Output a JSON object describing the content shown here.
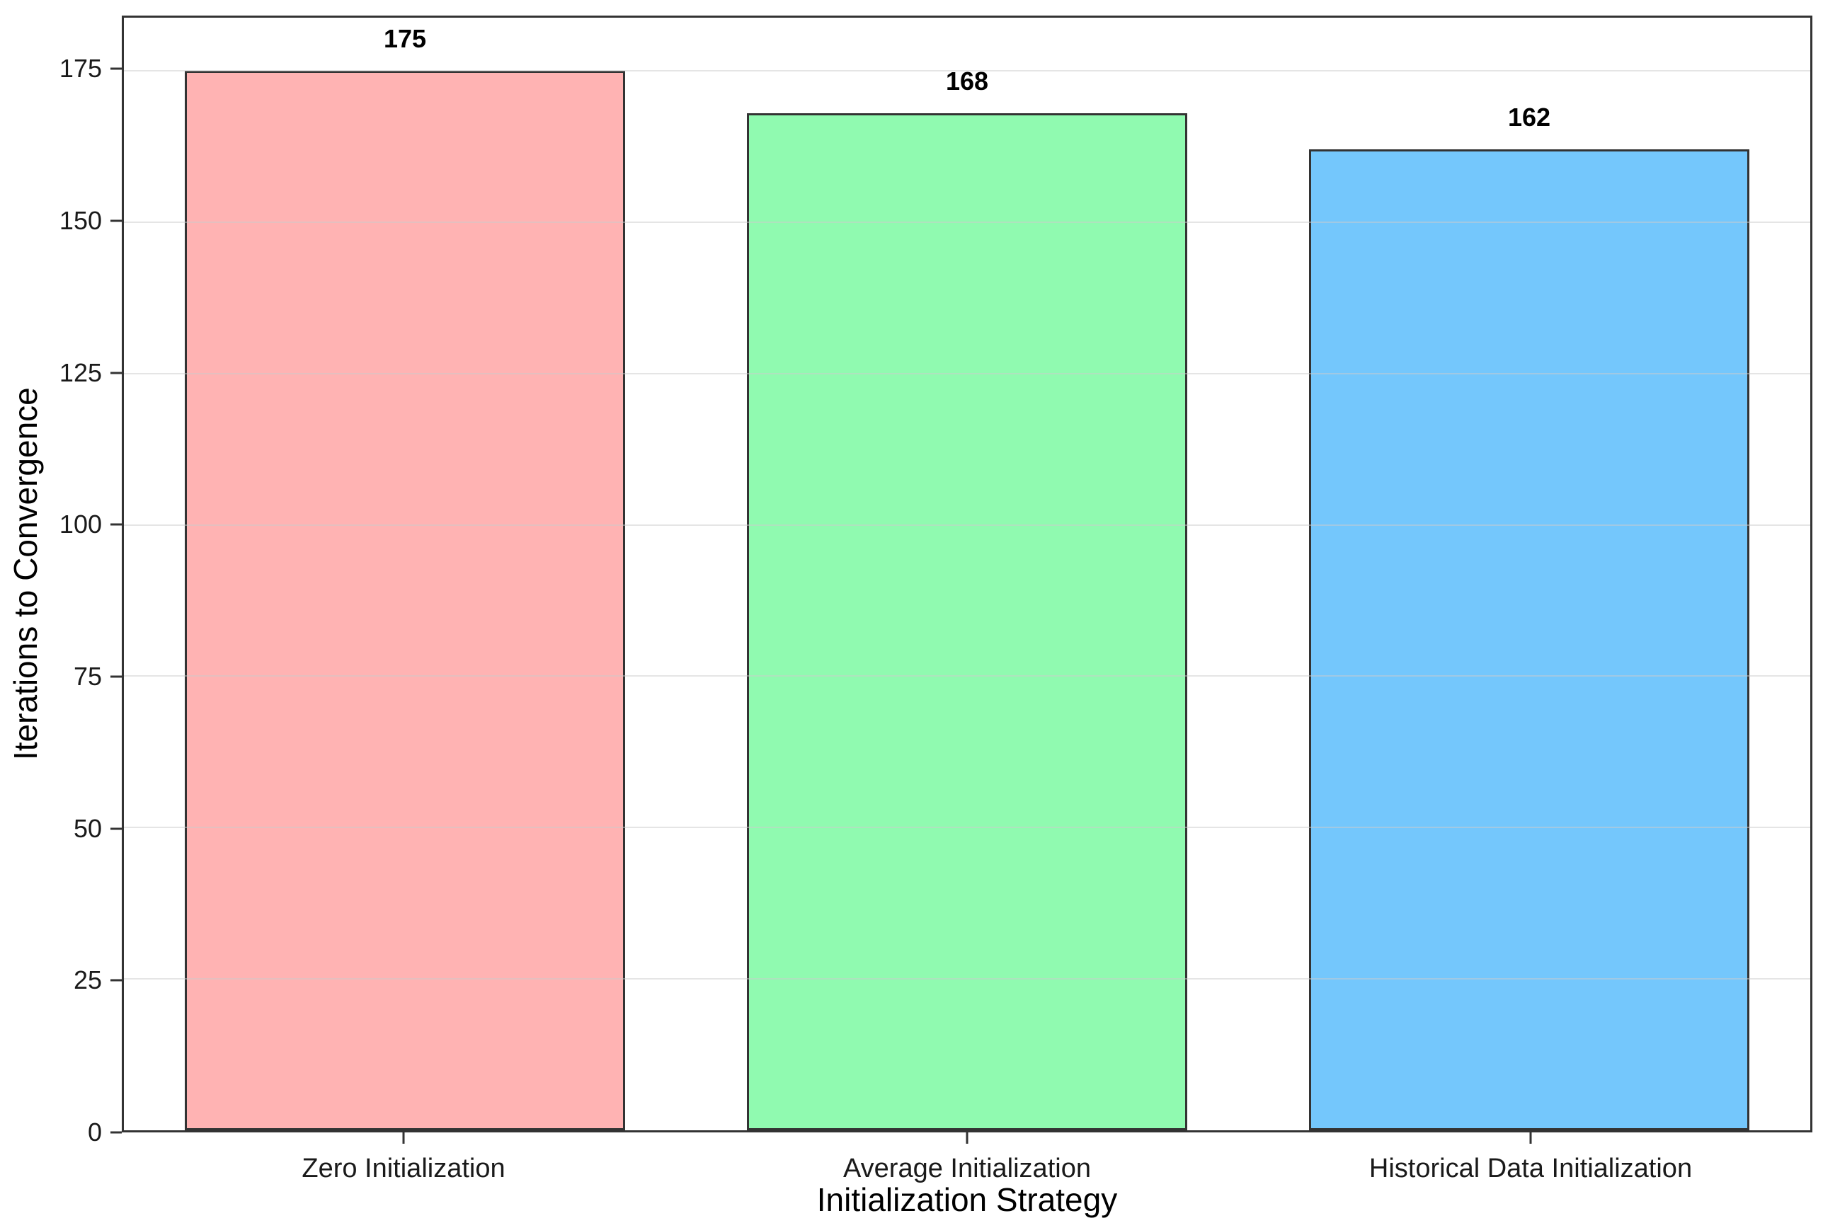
{
  "chart_data": {
    "type": "bar",
    "title": "",
    "xlabel": "Initialization Strategy",
    "ylabel": "Iterations to Convergence",
    "categories": [
      "Zero Initialization",
      "Average Initialization",
      "Historical Data Initialization"
    ],
    "values": [
      175,
      168,
      162
    ],
    "value_labels": [
      "175",
      "168",
      "162"
    ],
    "bar_colors": [
      "#ffb3b3",
      "#90fab0",
      "#74c7fc"
    ],
    "bar_edge_color": "#333333",
    "ylim": [
      0,
      183.75
    ],
    "yticks": [
      0,
      25,
      50,
      75,
      100,
      125,
      150,
      175
    ],
    "grid": "horizontal",
    "gridline_color": "rgba(203,203,203,0.5)",
    "frame_color": "#333333",
    "background_color": "#ffffff",
    "legend": "none",
    "bar_width_fraction": 0.261
  }
}
